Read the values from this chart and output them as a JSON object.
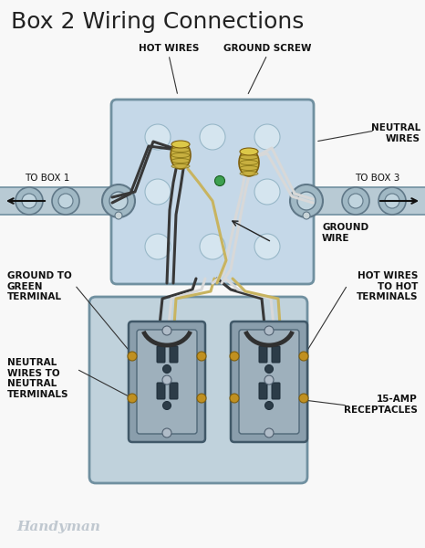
{
  "title": "Box 2 Wiring Connections",
  "title_fontsize": 18,
  "bg_color": "#f8f8f8",
  "labels": {
    "hot_wires": "HOT WIRES",
    "ground_screw": "GROUND SCREW",
    "neutral_wires": "NEUTRAL\nWIRES",
    "to_box1": "TO BOX 1",
    "to_box3": "TO BOX 3",
    "ground_wire": "GROUND\nWIRE",
    "ground_to_green": "GROUND TO\nGREEN\nTERMINAL",
    "hot_wires_to": "HOT WIRES\nTO HOT\nTERMINALS",
    "neutral_wires_to": "NEUTRAL\nWIRES TO\nNEUTRAL\nTERMINALS",
    "amp_receptacles": "15-AMP\nRECEPTACLES",
    "handyman": "Handyman"
  },
  "lf": 7.5,
  "box_color": "#c5d8e8",
  "box_edge": "#8aaabb",
  "conduit_color": "#b8cad4",
  "wire_dark": "#383838",
  "wire_white": "#d8d8d8",
  "wire_ground": "#c8b460",
  "connector_color": "#c8b040",
  "green_dot": "#3da050",
  "receptacle_body": "#8a9eac",
  "receptacle_face": "#9eb0bc"
}
